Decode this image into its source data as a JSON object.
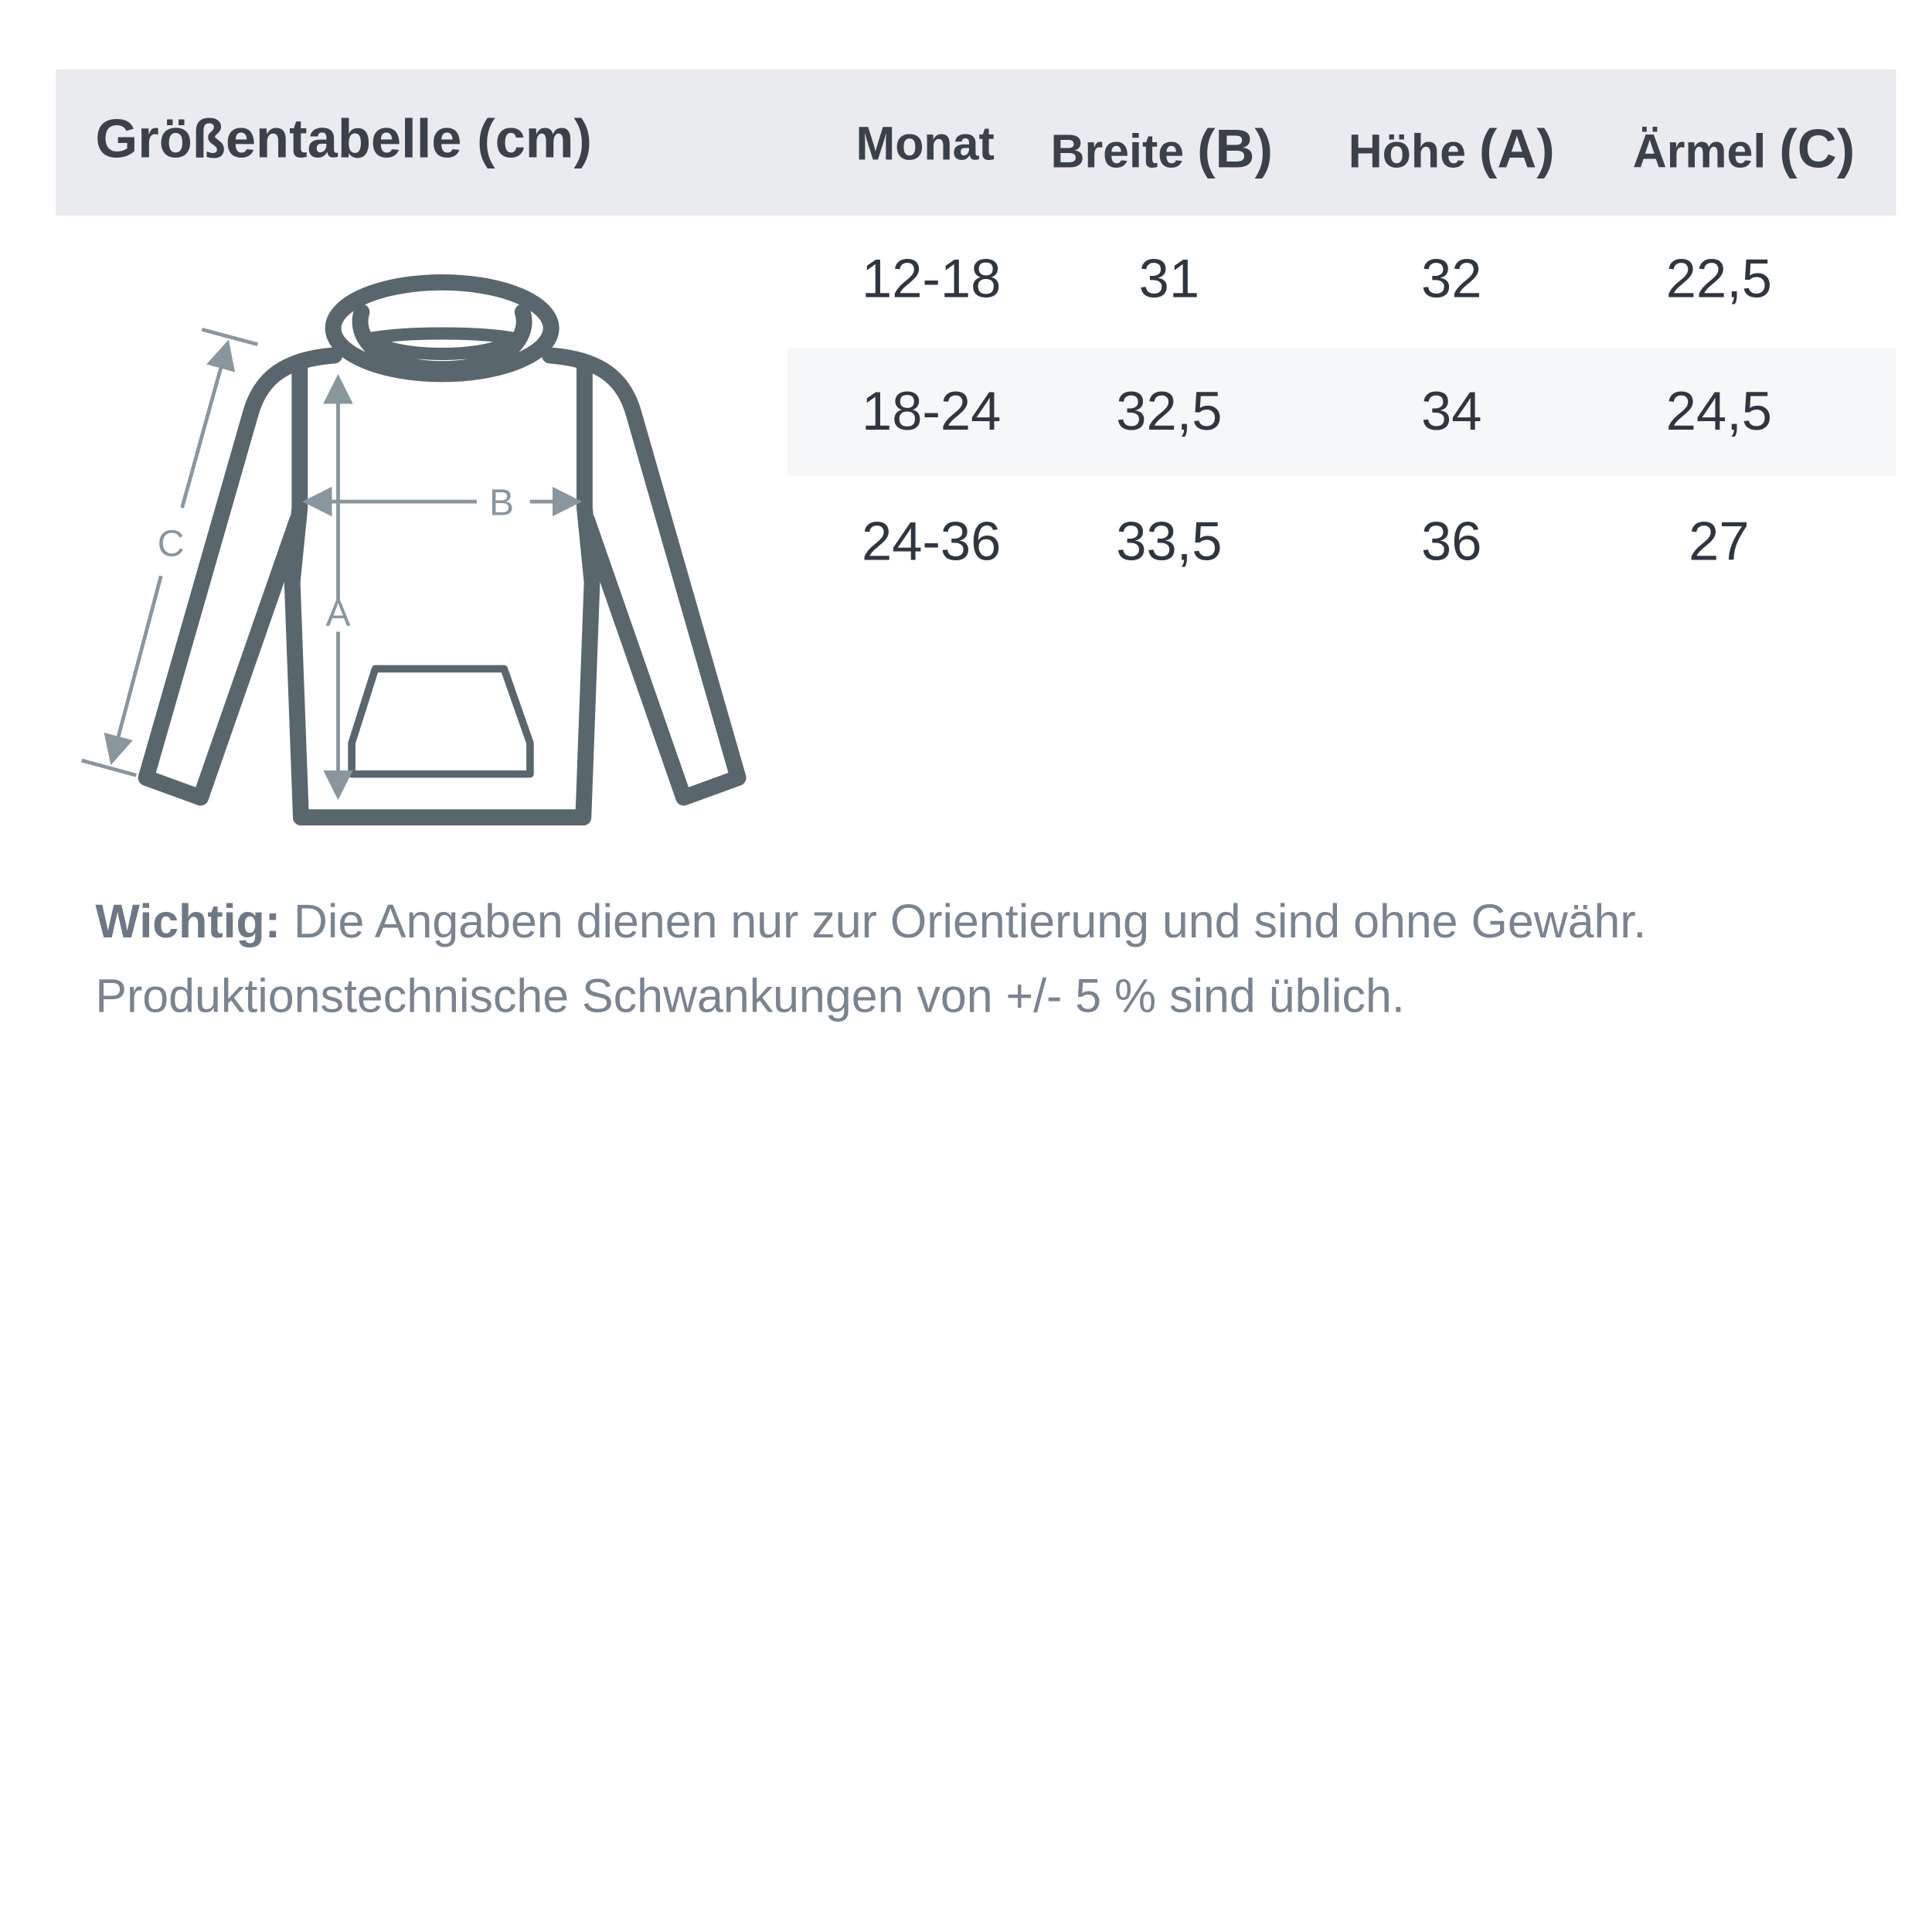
{
  "title": "Größentabelle (cm)",
  "columns": [
    {
      "label": "Monat",
      "suffix": ""
    },
    {
      "label": "Breite ",
      "suffix": "(B)"
    },
    {
      "label": "Höhe ",
      "suffix": "(A)"
    },
    {
      "label": "Ärmel ",
      "suffix": "(C)"
    }
  ],
  "rows": [
    [
      "12-18",
      "31",
      "32",
      "22,5"
    ],
    [
      "18-24",
      "32,5",
      "34",
      "24,5"
    ],
    [
      "24-36",
      "33,5",
      "36",
      "27"
    ]
  ],
  "diagram": {
    "label_a": "A",
    "label_b": "B",
    "label_c": "C"
  },
  "note": {
    "bold": "Wichtig:",
    "line1": " Die Angaben dienen nur zur Orientierung und sind ohne Gewähr.",
    "line2": "Produktionstechnische Schwankungen von +/- 5 % sind üblich."
  },
  "colors": {
    "header_bg": "#eaebef",
    "stroke": "#5a666d",
    "measure": "#8a969e",
    "text": "#3a414b"
  }
}
